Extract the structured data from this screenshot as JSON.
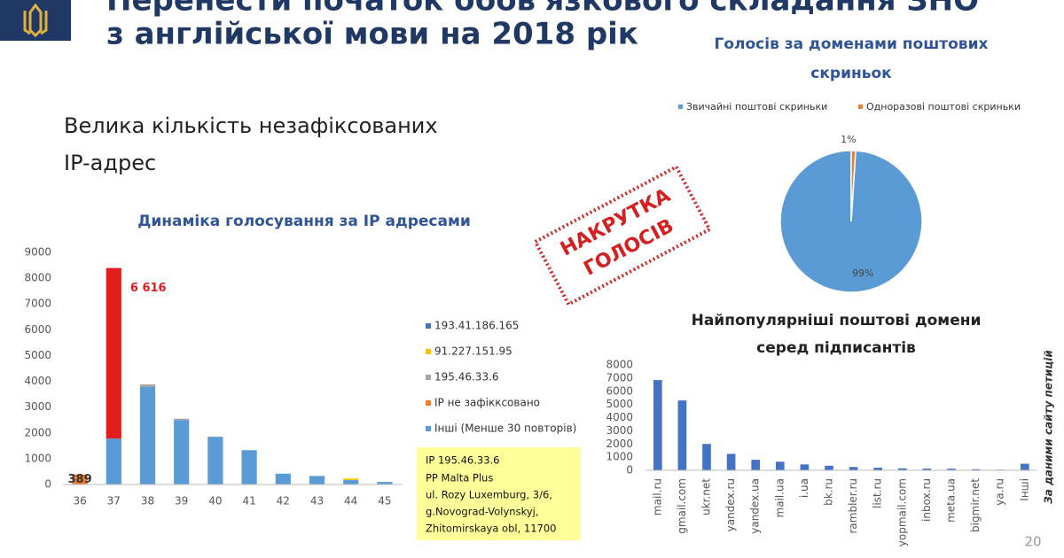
{
  "slide": {
    "title": [
      "Перенести початок обов'язкового складання ЗНО",
      "з англійської мови на 2018 рік"
    ],
    "subtitle": [
      "Велика кількість незафіксованих",
      "IP-адрес"
    ],
    "stamp": [
      "НАКРУТКА",
      "ГОЛОСІВ"
    ],
    "note": [
      "IP 195.46.33.6",
      "PP Malta Plus",
      "ul. Rozy Luxemburg, 3/6,",
      "g.Novograd-Volynskyj,",
      "Zhitomirskaya obl, 11700"
    ],
    "source": "За даними сайту петицій",
    "page_number": "20"
  },
  "chart_data": [
    {
      "type": "bar",
      "stacked": true,
      "title": [
        "Динаміка голосування за IP адресами"
      ],
      "categories": [
        "36",
        "37",
        "38",
        "39",
        "40",
        "41",
        "42",
        "43",
        "44",
        "45"
      ],
      "series": [
        {
          "name": "Інші (Менше 30 повторів)",
          "color": "#5b9bd5",
          "values": [
            0,
            1780,
            3780,
            2500,
            1850,
            1330,
            420,
            330,
            170,
            100
          ]
        },
        {
          "name": "IP не зафікксовано",
          "color": "#ed7d31",
          "values": [
            389,
            0,
            0,
            0,
            0,
            0,
            0,
            0,
            0,
            0
          ],
          "value_labels": [
            "389",
            null,
            null,
            null,
            null,
            null,
            null,
            null,
            null,
            null
          ]
        },
        {
          "name": "195.46.33.6",
          "color": "#a5a5a5",
          "point_colors": [
            null,
            "#e31c1c",
            null,
            null,
            null,
            null,
            null,
            null,
            null,
            null
          ],
          "values": [
            0,
            6616,
            100,
            50,
            0,
            0,
            0,
            0,
            0,
            0
          ],
          "value_labels": [
            null,
            "6 616",
            null,
            null,
            null,
            null,
            null,
            null,
            null,
            null
          ]
        },
        {
          "name": "91.227.151.95",
          "color": "#ffc000",
          "values": [
            0,
            0,
            0,
            0,
            0,
            0,
            0,
            0,
            60,
            0
          ]
        },
        {
          "name": "193.41.186.165",
          "color": "#4472c4",
          "values": [
            0,
            0,
            0,
            0,
            0,
            0,
            0,
            0,
            0,
            0
          ]
        }
      ],
      "ylim": [
        0,
        9000
      ],
      "yticks": [
        0,
        1000,
        2000,
        3000,
        4000,
        5000,
        6000,
        7000,
        8000,
        9000
      ],
      "grid": false,
      "legend": "right"
    },
    {
      "type": "pie",
      "title": [
        "Голосів за доменами поштових",
        "скриньок"
      ],
      "categories": [
        "Звичайні поштові скриньки",
        "Одноразові поштові скриньки"
      ],
      "values": [
        99,
        1
      ],
      "value_labels": [
        "99%",
        "1%"
      ],
      "colors": [
        "#5b9bd5",
        "#ed7d31"
      ],
      "legend": "top"
    },
    {
      "type": "bar",
      "title": [
        "Найпопулярніші поштові домени",
        "серед підписантів"
      ],
      "categories": [
        "mail.ru",
        "gmail.com",
        "ukr.net",
        "yandex.ru",
        "yandex.ua",
        "mail.ua",
        "i.ua",
        "bk.ru",
        "rambler.ru",
        "list.ru",
        "yopmail.com",
        "inbox.ru",
        "meta.ua",
        "bigmir.net",
        "ya.ru",
        "Інші"
      ],
      "values": [
        6850,
        5300,
        2000,
        1250,
        800,
        650,
        450,
        350,
        250,
        200,
        150,
        130,
        120,
        80,
        50,
        500
      ],
      "color": "#4472c4",
      "ylim": [
        0,
        8000
      ],
      "yticks": [
        0,
        1000,
        2000,
        3000,
        4000,
        5000,
        6000,
        7000,
        8000
      ],
      "grid": false
    }
  ]
}
